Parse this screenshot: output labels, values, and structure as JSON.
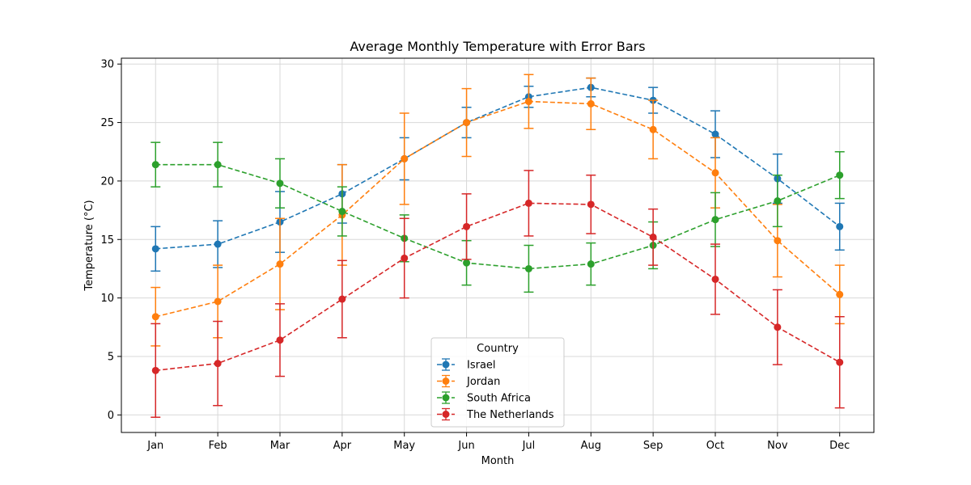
{
  "chart_data": {
    "type": "line",
    "title": "Average Monthly Temperature with Error Bars",
    "xlabel": "Month",
    "ylabel": "Temperature (°C)",
    "categories": [
      "Jan",
      "Feb",
      "Mar",
      "Apr",
      "May",
      "Jun",
      "Jul",
      "Aug",
      "Sep",
      "Oct",
      "Nov",
      "Dec"
    ],
    "ylim": [
      -1.5,
      30.5
    ],
    "yticks": [
      0,
      5,
      10,
      15,
      20,
      25,
      30
    ],
    "grid": true,
    "legend": {
      "title": "Country",
      "placement": "lower-center"
    },
    "series": [
      {
        "name": "Israel",
        "color": "#1f77b4",
        "values": [
          14.2,
          14.6,
          16.5,
          18.9,
          21.9,
          25.0,
          27.2,
          28.0,
          26.9,
          24.0,
          20.2,
          16.1
        ],
        "errors": [
          1.9,
          2.0,
          2.6,
          2.5,
          1.8,
          1.3,
          0.9,
          0.8,
          1.1,
          2.0,
          2.1,
          2.0
        ]
      },
      {
        "name": "Jordan",
        "color": "#ff7f0e",
        "values": [
          8.4,
          9.7,
          12.9,
          17.1,
          21.9,
          25.0,
          26.8,
          26.6,
          24.4,
          20.7,
          14.9,
          10.3
        ],
        "errors": [
          2.5,
          3.1,
          3.9,
          4.3,
          3.9,
          2.9,
          2.3,
          2.2,
          2.5,
          3.0,
          3.1,
          2.5
        ]
      },
      {
        "name": "South Africa",
        "color": "#2ca02c",
        "values": [
          21.4,
          21.4,
          19.8,
          17.4,
          15.1,
          13.0,
          12.5,
          12.9,
          14.5,
          16.7,
          18.3,
          20.5
        ],
        "errors": [
          1.9,
          1.9,
          2.1,
          2.1,
          2.0,
          1.9,
          2.0,
          1.8,
          2.0,
          2.3,
          2.2,
          2.0
        ]
      },
      {
        "name": "The Netherlands",
        "color": "#d62728",
        "values": [
          3.8,
          4.4,
          6.4,
          9.9,
          13.4,
          16.1,
          18.1,
          18.0,
          15.2,
          11.6,
          7.5,
          4.5
        ],
        "errors": [
          4.0,
          3.6,
          3.1,
          3.3,
          3.4,
          2.8,
          2.8,
          2.5,
          2.4,
          3.0,
          3.2,
          3.9
        ]
      }
    ]
  }
}
